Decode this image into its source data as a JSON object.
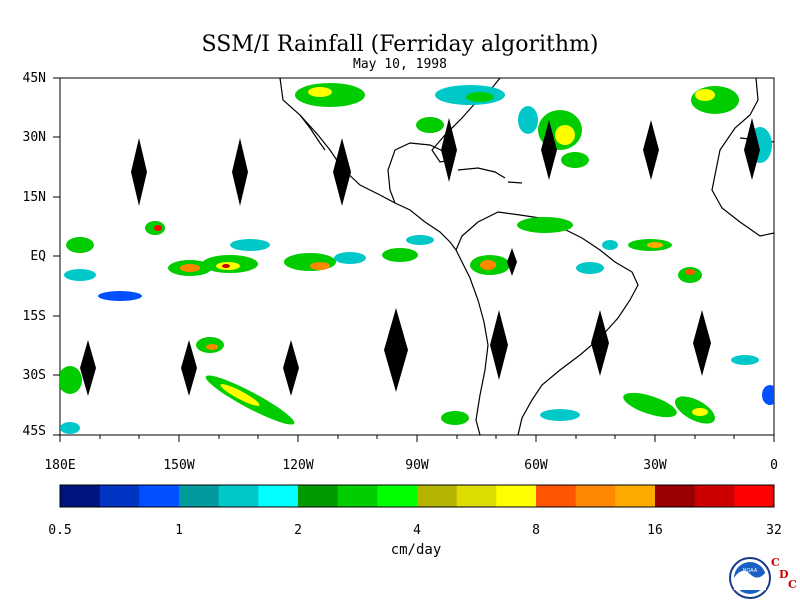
{
  "title": "SSM/I Rainfall (Ferriday algorithm)",
  "date": "May 10, 1998",
  "lat_labels": [
    "45N",
    "30N",
    "15N",
    "EQ",
    "15S",
    "30S",
    "45S"
  ],
  "lon_labels": [
    "180E",
    "150W",
    "120W",
    "90W",
    "60W",
    "30W",
    "0"
  ],
  "colorbar": {
    "unit_label": "cm/day",
    "tick_labels": [
      "0.5",
      "1",
      "2",
      "4",
      "8",
      "16",
      "32"
    ],
    "colors": [
      "#00147f",
      "#0035c4",
      "#0050ff",
      "#00999c",
      "#00c8c8",
      "#00ffff",
      "#009900",
      "#00cc00",
      "#00ff00",
      "#b3b300",
      "#dddd00",
      "#ffff00",
      "#ff5500",
      "#ff8800",
      "#ffaa00",
      "#990000",
      "#cc0000",
      "#ff0000"
    ]
  },
  "logo": {
    "text": "NOAA",
    "cdc": [
      "C",
      "D",
      "C"
    ]
  }
}
